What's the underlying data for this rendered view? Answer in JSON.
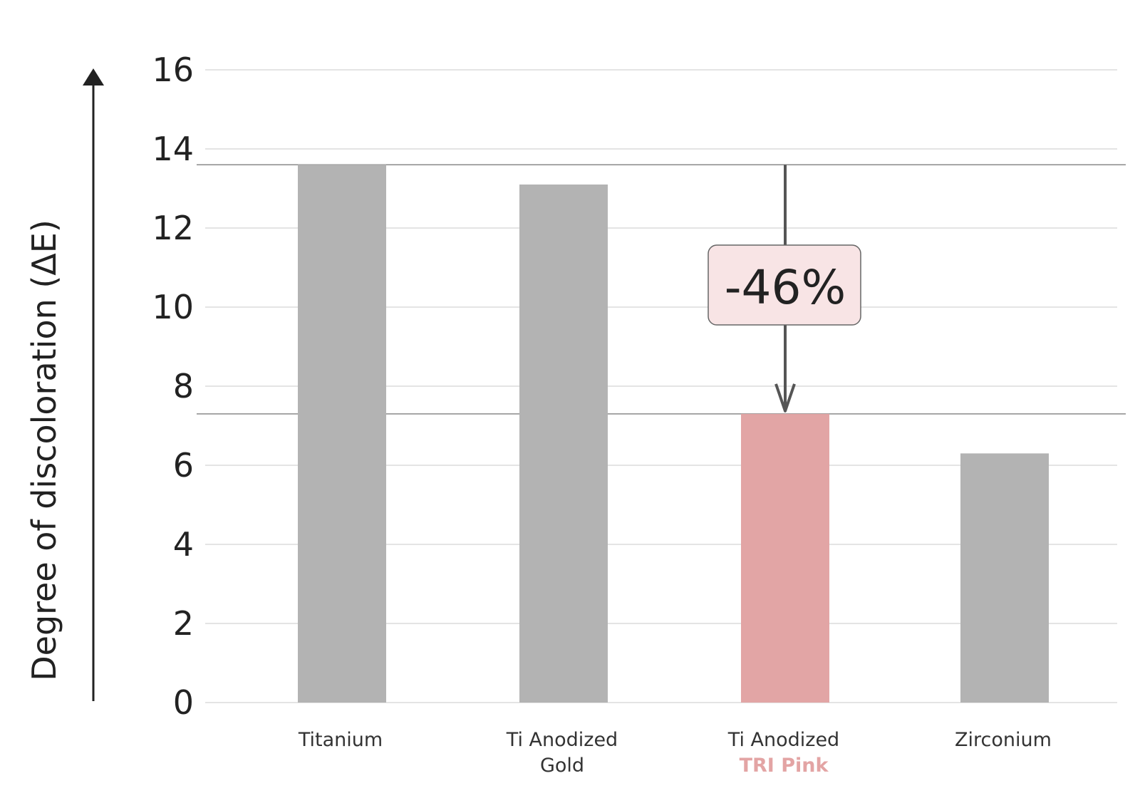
{
  "chart_data": {
    "type": "bar",
    "categories": [
      "Titanium",
      "Ti Anodized Gold",
      "Ti Anodized TRI Pink",
      "Zirconium"
    ],
    "category_lines": [
      [
        "Titanium"
      ],
      [
        "Ti Anodized",
        "Gold"
      ],
      [
        "Ti Anodized",
        "TRI Pink"
      ],
      [
        "Zirconium"
      ]
    ],
    "values": [
      13.6,
      13.1,
      7.3,
      6.3
    ],
    "bar_colors": [
      "#b3b3b3",
      "#b3b3b3",
      "#e2a5a5",
      "#b3b3b3"
    ],
    "highlight_label_color": "#e3a4a4",
    "ylabel": "Degree of discoloration (ΔE)",
    "ylim": [
      0,
      16
    ],
    "yticks": [
      0,
      2,
      4,
      6,
      8,
      10,
      12,
      14,
      16
    ],
    "grid": true,
    "annotation": {
      "text": "-46%",
      "from_value": 13.6,
      "to_value": 7.3,
      "category_index": 2,
      "box_fill": "#f8e4e5",
      "box_stroke": "#666666"
    }
  }
}
